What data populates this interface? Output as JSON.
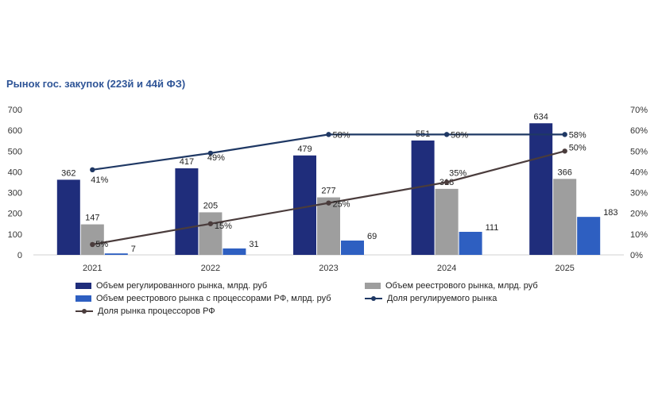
{
  "chart_data": {
    "type": "bar",
    "title": "Рынок гос. закупок (223й и 44й ФЗ)",
    "categories": [
      "2021",
      "2022",
      "2023",
      "2024",
      "2025"
    ],
    "ylim": [
      0,
      700
    ],
    "y_ticks": [
      "0",
      "100",
      "200",
      "300",
      "400",
      "500",
      "600",
      "700"
    ],
    "y2lim": [
      0,
      70
    ],
    "y2_ticks": [
      "0%",
      "10%",
      "20%",
      "30%",
      "40%",
      "50%",
      "60%",
      "70%"
    ],
    "grid": false,
    "legend_position": "bottom",
    "bar_series": [
      {
        "name": "Объем регулированного рынка, млрд. руб",
        "values": [
          362,
          417,
          479,
          551,
          634
        ],
        "labels": [
          "362",
          "417",
          "479",
          "551",
          "634"
        ],
        "color": "#1f2d7b"
      },
      {
        "name": "Объем реестрового рынка, млрд. руб",
        "values": [
          147,
          205,
          277,
          318,
          366
        ],
        "labels": [
          "147",
          "205",
          "277",
          "318",
          "366"
        ],
        "color": "#9e9e9e"
      },
      {
        "name": "Объем реестрового рынка с процессорами РФ, млрд. руб",
        "values": [
          7,
          31,
          69,
          111,
          183
        ],
        "labels": [
          "7",
          "31",
          "69",
          "111",
          "183"
        ],
        "color": "#2e5fc1"
      }
    ],
    "line_series": [
      {
        "name": "Доля регулируемого рынка",
        "values": [
          41,
          49,
          58,
          58,
          58
        ],
        "labels": [
          "41%",
          "49%",
          "58%",
          "58%",
          "58%"
        ],
        "color": "#1f3864"
      },
      {
        "name": "Доля рынка процессоров РФ",
        "values": [
          5,
          15,
          25,
          35,
          50
        ],
        "labels": [
          "5%",
          "15%",
          "25%",
          "35%",
          "50%"
        ],
        "color": "#4a3c3c"
      }
    ]
  }
}
